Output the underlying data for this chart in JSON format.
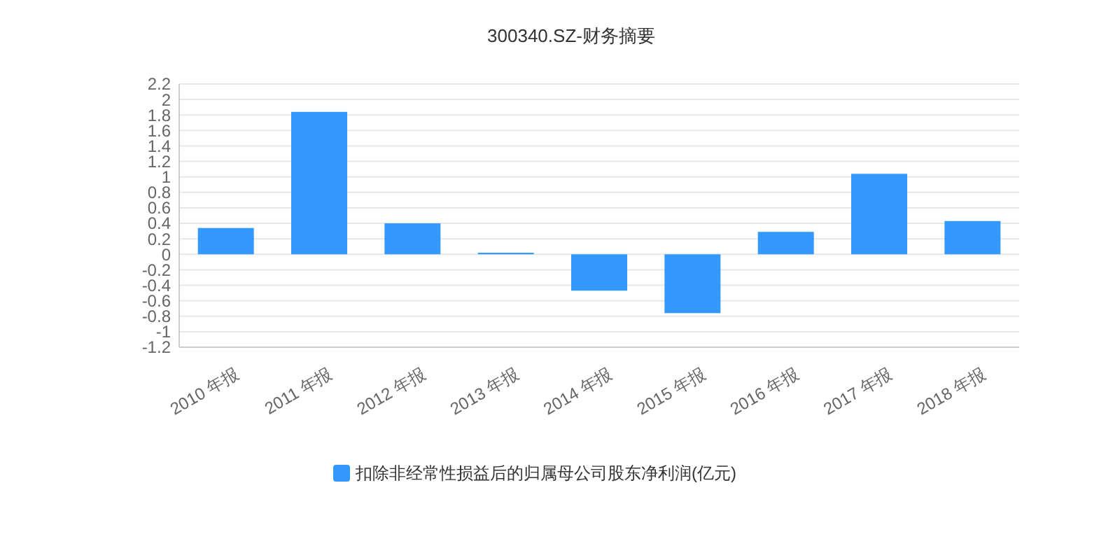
{
  "chart_data": {
    "type": "bar",
    "title": "300340.SZ-财务摘要",
    "categories": [
      "2010 年报",
      "2011 年报",
      "2012 年报",
      "2013 年报",
      "2014 年报",
      "2015 年报",
      "2016 年报",
      "2017 年报",
      "2018 年报"
    ],
    "series": [
      {
        "name": "扣除非经常性损益后的归属母公司股东净利润(亿元)",
        "color": "#3399ff",
        "values": [
          0.34,
          1.84,
          0.4,
          0.02,
          -0.47,
          -0.76,
          0.29,
          1.04,
          0.43
        ]
      }
    ],
    "ylim": [
      -1.2,
      2.2
    ],
    "yticks": [
      -1.2,
      -1,
      -0.8,
      -0.6,
      -0.4,
      -0.2,
      0,
      0.2,
      0.4,
      0.6,
      0.8,
      1,
      1.2,
      1.4,
      1.6,
      1.8,
      2,
      2.2
    ],
    "grid": "y",
    "legend": "bottom"
  }
}
